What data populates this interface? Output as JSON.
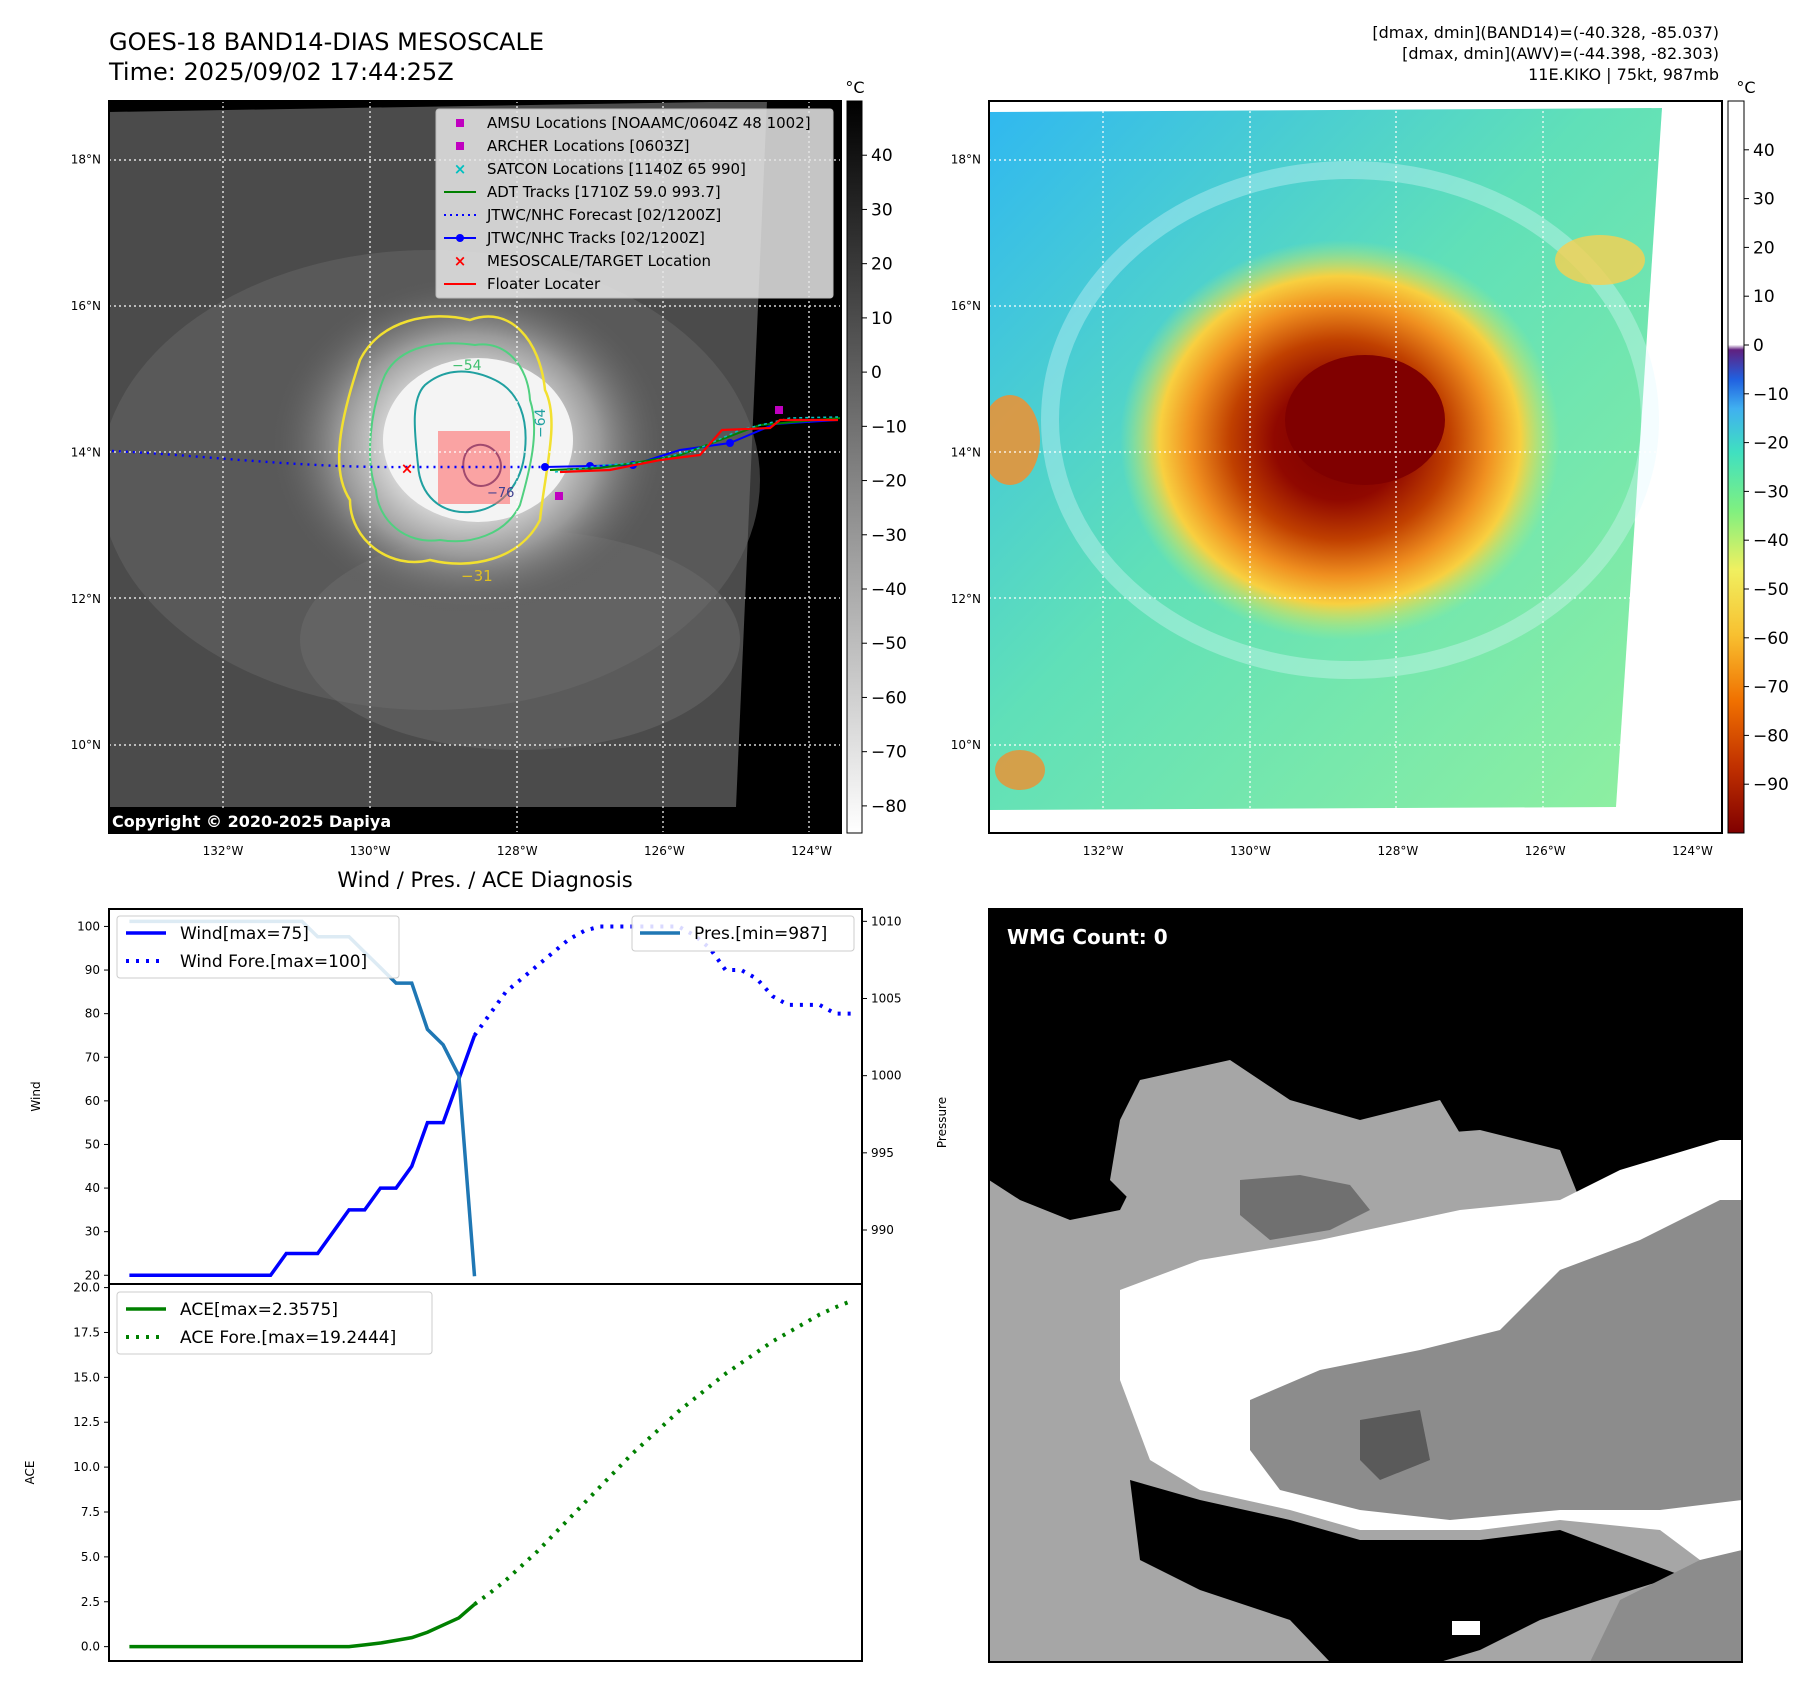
{
  "header": {
    "title_line1": "GOES-18 BAND14-DIAS MESOSCALE",
    "title_line2": "Time: 2025/09/02 17:44:25Z",
    "stats_line1": "[dmax, dmin](BAND14)=(-40.328, -85.037)",
    "stats_line2": "[dmax, dmin](AWV)=(-44.398, -82.303)",
    "stats_line3": "11E.KIKO | 75kt, 987mb"
  },
  "map_axes": {
    "lon_labels": [
      "132°W",
      "130°W",
      "128°W",
      "126°W",
      "124°W"
    ],
    "lon_values": [
      -132,
      -130,
      -128,
      -126,
      -124
    ],
    "lat_labels": [
      "18°N",
      "16°N",
      "14°N",
      "12°N",
      "10°N"
    ],
    "lat_values": [
      18,
      16,
      14,
      12,
      10
    ],
    "lon_range": [
      -133.55,
      -123.6
    ],
    "lat_range": [
      8.8,
      18.8
    ]
  },
  "colorbar_ir": {
    "unit": "°C",
    "ticks": [
      "40",
      "30",
      "20",
      "10",
      "0",
      "−10",
      "−20",
      "−30",
      "−40",
      "−50",
      "−60",
      "−70",
      "−80"
    ],
    "tick_values": [
      40,
      30,
      20,
      10,
      0,
      -10,
      -20,
      -30,
      -40,
      -50,
      -60,
      -70,
      -80
    ],
    "range": [
      -85,
      50
    ],
    "colors": [
      "#ffffff",
      "#000000"
    ]
  },
  "colorbar_awv": {
    "unit": "°C",
    "ticks": [
      "40",
      "30",
      "20",
      "10",
      "0",
      "−10",
      "−20",
      "−30",
      "−40",
      "−50",
      "−60",
      "−70",
      "−80",
      "−90"
    ],
    "tick_values": [
      40,
      30,
      20,
      10,
      0,
      -10,
      -20,
      -30,
      -40,
      -50,
      -60,
      -70,
      -80,
      -90
    ],
    "range": [
      -100,
      50
    ],
    "colors": [
      "#800000",
      "#c04000",
      "#f08000",
      "#f8c030",
      "#f0f060",
      "#a0f080",
      "#40e0c0",
      "#40b0f0",
      "#2060e0",
      "#2020a0",
      "#602080"
    ]
  },
  "legend": {
    "items": [
      {
        "label": "AMSU Locations [NOAAMC/0604Z 48 1002]",
        "color": "#c000c0",
        "kind": "square"
      },
      {
        "label": "ARCHER Locations [0603Z]",
        "color": "#c000c0",
        "kind": "square"
      },
      {
        "label": "SATCON Locations [1140Z 65 990]",
        "color": "#00c0c0",
        "kind": "x"
      },
      {
        "label": "ADT Tracks [1710Z 59.0 993.7]",
        "color": "#008000",
        "kind": "line"
      },
      {
        "label": "JTWC/NHC Forecast [02/1200Z]",
        "color": "#0000ff",
        "kind": "dotted"
      },
      {
        "label": "JTWC/NHC Tracks [02/1200Z]",
        "color": "#0000ff",
        "kind": "line-dot"
      },
      {
        "label": "MESOSCALE/TARGET Location",
        "color": "#ff0000",
        "kind": "x"
      },
      {
        "label": "Floater Locater",
        "color": "#ff0000",
        "kind": "line"
      }
    ]
  },
  "contour_labels": [
    "−54",
    "−64",
    "−76",
    "−31"
  ],
  "copyright": "Copyright © 2020-2025 Dapiya",
  "diag_title": "Wind / Pres. / ACE Diagnosis",
  "wmg_label": "WMG Count: 0",
  "chart_data": [
    {
      "type": "line",
      "title": "Wind / Pres. / ACE Diagnosis",
      "ylabel": "Wind",
      "ylabel_right": "Pressure",
      "ylim": [
        18,
        104
      ],
      "ylim_right": [
        986.5,
        1010.8
      ],
      "yticks": [
        20,
        30,
        40,
        50,
        60,
        70,
        80,
        90,
        100
      ],
      "yticks_right": [
        990,
        995,
        1000,
        1005,
        1010
      ],
      "x": [
        0,
        1,
        2,
        3,
        4,
        5,
        6,
        7,
        8,
        9,
        10,
        11,
        12,
        13,
        14,
        15,
        16,
        17,
        18,
        19,
        20,
        21,
        22,
        23
      ],
      "series": [
        {
          "name": "Wind[max=75]",
          "style": "solid",
          "color": "#0000ff",
          "axis": "left",
          "x": [
            0,
            1,
            2,
            3,
            4,
            5,
            6,
            7,
            8,
            9,
            10,
            11,
            12,
            13,
            14,
            15,
            16,
            17,
            18,
            19,
            20,
            21,
            22
          ],
          "values": [
            20,
            20,
            20,
            20,
            20,
            20,
            20,
            20,
            20,
            20,
            25,
            25,
            25,
            30,
            35,
            35,
            40,
            40,
            45,
            55,
            55,
            65,
            75
          ]
        },
        {
          "name": "Wind Fore.[max=100]",
          "style": "dotted",
          "color": "#0000ff",
          "axis": "left",
          "x": [
            22,
            23,
            24,
            25,
            26,
            27,
            28,
            29,
            30,
            31,
            32,
            33,
            34,
            35,
            36,
            37,
            38,
            39,
            40,
            41,
            42,
            43,
            44,
            45,
            46
          ],
          "values": [
            75,
            80,
            85,
            88,
            91,
            94,
            97,
            99,
            100,
            100,
            100,
            100,
            100,
            100,
            98,
            95,
            90,
            90,
            88,
            84,
            82,
            82,
            82,
            80,
            80
          ]
        },
        {
          "name": "Pres.[min=987]",
          "style": "solid",
          "color": "#1f77b4",
          "axis": "right",
          "x": [
            0,
            1,
            2,
            3,
            4,
            5,
            6,
            7,
            8,
            9,
            10,
            11,
            12,
            13,
            14,
            15,
            16,
            17,
            18,
            19,
            20,
            21,
            22
          ],
          "values": [
            1010,
            1010,
            1010,
            1010,
            1010,
            1010,
            1010,
            1010,
            1010,
            1010,
            1010,
            1010,
            1009,
            1009,
            1009,
            1008,
            1007,
            1006,
            1006,
            1003,
            1002,
            1000,
            987
          ]
        }
      ]
    },
    {
      "type": "line",
      "ylabel": "ACE",
      "ylim": [
        -0.8,
        20.2
      ],
      "yticks": [
        0.0,
        2.5,
        5.0,
        7.5,
        10.0,
        12.5,
        15.0,
        17.5,
        20.0
      ],
      "ytick_labels": [
        "0.0",
        "2.5",
        "5.0",
        "7.5",
        "10.0",
        "12.5",
        "15.0",
        "17.5",
        "20.0"
      ],
      "series": [
        {
          "name": "ACE[max=2.3575]",
          "style": "solid",
          "color": "#008000",
          "x": [
            0,
            1,
            2,
            3,
            4,
            5,
            6,
            7,
            8,
            9,
            10,
            11,
            12,
            13,
            14,
            15,
            16,
            17,
            18,
            19,
            20,
            21,
            22
          ],
          "values": [
            0,
            0,
            0,
            0,
            0,
            0,
            0,
            0,
            0,
            0,
            0,
            0,
            0,
            0,
            0,
            0.1,
            0.2,
            0.35,
            0.5,
            0.8,
            1.2,
            1.6,
            2.3575
          ]
        },
        {
          "name": "ACE Fore.[max=19.2444]",
          "style": "dotted",
          "color": "#008000",
          "x": [
            22,
            23,
            24,
            25,
            26,
            27,
            28,
            29,
            30,
            31,
            32,
            33,
            34,
            35,
            36,
            37,
            38,
            39,
            40,
            41,
            42,
            43,
            44,
            45,
            46
          ],
          "values": [
            2.3575,
            3.0,
            3.7,
            4.5,
            5.3,
            6.2,
            7.1,
            8.0,
            8.9,
            9.8,
            10.7,
            11.5,
            12.3,
            13.1,
            13.8,
            14.5,
            15.2,
            15.8,
            16.4,
            17.0,
            17.5,
            18.0,
            18.5,
            18.9,
            19.2444
          ]
        }
      ]
    }
  ]
}
